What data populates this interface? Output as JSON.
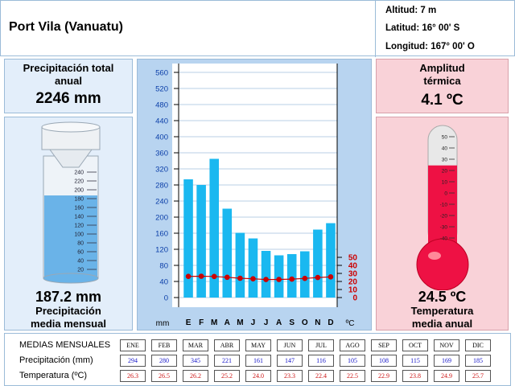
{
  "station": {
    "name": "Port Vila (Vanuatu)",
    "altitude": "Altitud: 7 m",
    "latitude": "Latitud: 16° 00' S",
    "longitude": "Longitud: 167° 00' O"
  },
  "precip_total": {
    "title_line1": "Precipitación total",
    "title_line2": "anual",
    "value": "2246 mm"
  },
  "precip_mean": {
    "value": "187.2 mm",
    "label_line1": "Precipitación",
    "label_line2": "media mensual",
    "gauge_ticks": [
      "240",
      "220",
      "200",
      "180",
      "160",
      "140",
      "120",
      "100",
      "80",
      "60",
      "40",
      "20"
    ],
    "fill_level_mm": 187.2
  },
  "amplitude": {
    "title_line1": "Amplitud",
    "title_line2": "térmica",
    "value": "4.1 ºC"
  },
  "temp_mean": {
    "value": "24.5 ºC",
    "label_line1": "Temperatura",
    "label_line2": "media anual",
    "thermo_ticks": [
      "50",
      "40",
      "30",
      "20",
      "10",
      "0",
      "-10",
      "-20",
      "-30",
      "-40"
    ],
    "level_c": 24.5
  },
  "chart_data": {
    "type": "bar",
    "categories": [
      "E",
      "F",
      "M",
      "A",
      "M",
      "J",
      "J",
      "A",
      "S",
      "O",
      "N",
      "D"
    ],
    "series": [
      {
        "values": [
          294,
          280,
          345,
          221,
          161,
          147,
          116,
          105,
          108,
          115,
          169,
          185
        ],
        "axis": "left",
        "kind": "bar"
      },
      {
        "values": [
          26.3,
          26.5,
          26.2,
          25.2,
          24.0,
          23.3,
          22.4,
          22.5,
          22.9,
          23.8,
          24.9,
          25.7
        ],
        "axis": "right",
        "kind": "line"
      }
    ],
    "ylim_left": [
      0,
      560
    ],
    "yticks_left": [
      "560",
      "520",
      "480",
      "440",
      "400",
      "360",
      "320",
      "280",
      "240",
      "200",
      "160",
      "120",
      "80",
      "40",
      "0"
    ],
    "ylim_right": [
      0,
      280
    ],
    "yticks_right": [
      "50",
      "40",
      "30",
      "20",
      "10",
      "0"
    ],
    "xlabel_left": "mm",
    "xlabel_right": "ºC",
    "colors": {
      "bar": "#1ab8f0",
      "line": "#cc0000",
      "right_ticks": "#cc0000"
    }
  },
  "table": {
    "title": "MEDIAS MENSUALES",
    "row_precip_label": "Precipitación (mm)",
    "row_temp_label": "Temperatura (ºC)",
    "months": [
      "ENE",
      "FEB",
      "MAR",
      "ABR",
      "MAY",
      "JUN",
      "JUL",
      "AGO",
      "SEP",
      "OCT",
      "NOV",
      "DIC"
    ],
    "precip": [
      "294",
      "280",
      "345",
      "221",
      "161",
      "147",
      "116",
      "105",
      "108",
      "115",
      "169",
      "185"
    ],
    "temp": [
      "26.3",
      "26.5",
      "26.2",
      "25.2",
      "24.0",
      "23.3",
      "22.4",
      "22.5",
      "22.9",
      "23.8",
      "24.9",
      "25.7"
    ]
  }
}
